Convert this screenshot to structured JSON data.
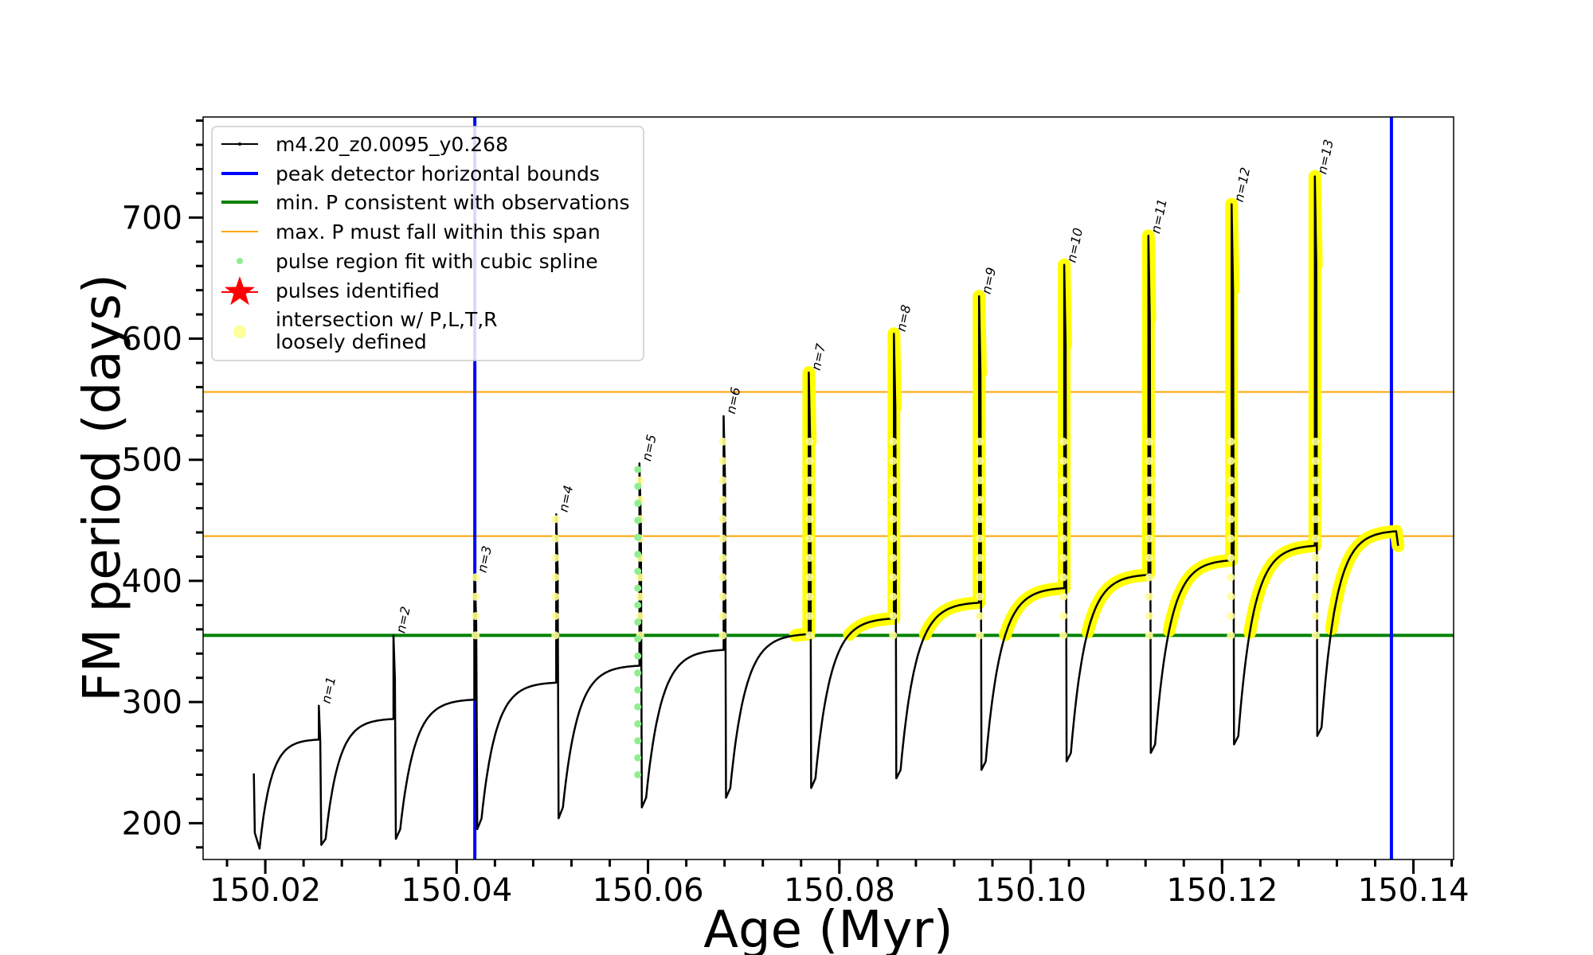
{
  "chart_data": {
    "type": "line",
    "xlabel": "Age (Myr)",
    "ylabel": "FM period (days)",
    "xlim": [
      150.0135,
      150.1442
    ],
    "ylim": [
      170,
      783
    ],
    "x_ticks": [
      150.02,
      150.04,
      150.06,
      150.08,
      150.1,
      150.12,
      150.14
    ],
    "x_tick_labels": [
      "150.02",
      "150.04",
      "150.06",
      "150.08",
      "150.10",
      "150.12",
      "150.14"
    ],
    "y_ticks": [
      200,
      300,
      400,
      500,
      600,
      700
    ],
    "y_tick_labels": [
      "200",
      "300",
      "400",
      "500",
      "600",
      "700"
    ],
    "grid": false,
    "legend_placement": "top-left",
    "legend": [
      {
        "label": "m4.20_z0.0095_y0.268",
        "kind": "line-marker",
        "color": "#000000"
      },
      {
        "label": "peak detector horizontal bounds",
        "kind": "line",
        "color": "#0000ff"
      },
      {
        "label": "min. P consistent with observations",
        "kind": "line",
        "color": "#008000"
      },
      {
        "label": "max. P must fall within this span",
        "kind": "line",
        "color": "#ffa500"
      },
      {
        "label": "pulse region fit with cubic spline",
        "kind": "dot",
        "color": "#90ee90"
      },
      {
        "label": "pulses identified",
        "kind": "star",
        "color": "#ff0000"
      },
      {
        "label": "intersection w/ P,L,T,R\nloosely defined",
        "kind": "circle",
        "color": "#ffff99"
      }
    ],
    "vertical_bounds": [
      150.0419,
      150.1377
    ],
    "min_period": 355,
    "max_period_span": [
      437,
      556
    ],
    "pulses": [
      {
        "label": "n=1",
        "age": 150.0256,
        "peak": 297,
        "base": 269,
        "start_val": 182,
        "dip": 187
      },
      {
        "label": "n=2",
        "age": 150.0334,
        "peak": 355,
        "base": 286,
        "start_val": 187,
        "dip": 195
      },
      {
        "label": "n=3",
        "age": 150.0419,
        "peak": 405,
        "base": 302,
        "start_val": 195,
        "dip": 204
      },
      {
        "label": "n=4",
        "age": 150.0504,
        "peak": 455,
        "base": 316,
        "start_val": 204,
        "dip": 213
      },
      {
        "label": "n=5",
        "age": 150.0591,
        "peak": 497,
        "base": 330,
        "start_val": 213,
        "dip": 221
      },
      {
        "label": "n=6",
        "age": 150.0679,
        "peak": 536,
        "base": 343,
        "start_val": 221,
        "dip": 229
      },
      {
        "label": "n=7",
        "age": 150.0768,
        "peak": 572,
        "base": 356,
        "start_val": 229,
        "dip": 237
      },
      {
        "label": "n=8",
        "age": 150.0857,
        "peak": 604,
        "base": 369,
        "start_val": 237,
        "dip": 244
      },
      {
        "label": "n=9",
        "age": 150.0946,
        "peak": 635,
        "base": 382,
        "start_val": 244,
        "dip": 251
      },
      {
        "label": "n=10",
        "age": 150.1035,
        "peak": 661,
        "base": 394,
        "start_val": 251,
        "dip": 258
      },
      {
        "label": "n=11",
        "age": 150.1123,
        "peak": 685,
        "base": 405,
        "start_val": 258,
        "dip": 265
      },
      {
        "label": "n=12",
        "age": 150.121,
        "peak": 711,
        "base": 417,
        "start_val": 265,
        "dip": 272
      },
      {
        "label": "n=13",
        "age": 150.1297,
        "peak": 734,
        "base": 429,
        "start_val": 272,
        "dip": 279
      }
    ],
    "track_start": {
      "age": 150.0188,
      "value": 241
    },
    "first_dip": {
      "age": 150.0194,
      "value": 179
    },
    "track_end": {
      "age": 150.1382,
      "value": 441
    },
    "spline_fit_pulse": "n=5"
  }
}
